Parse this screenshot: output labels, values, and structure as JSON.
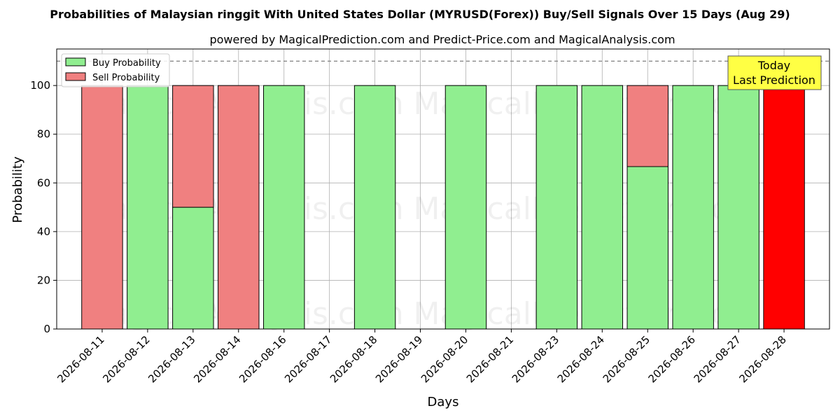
{
  "chart_data": {
    "type": "bar",
    "title": "Probabilities of Malaysian ringgit With United States Dollar (MYRUSD(Forex)) Buy/Sell Signals Over 15 Days (Aug 29)",
    "subtitle": "powered by MagicalPrediction.com and Predict-Price.com and MagicalAnalysis.com",
    "xlabel": "Days",
    "ylabel": "Probability",
    "ylim": [
      0,
      115
    ],
    "yticks": [
      0,
      20,
      40,
      60,
      80,
      100
    ],
    "reference_line": 110,
    "grid": true,
    "legend_position": "top-left",
    "categories": [
      "2026-08-11",
      "2026-08-12",
      "2026-08-13",
      "2026-08-14",
      "2026-08-16",
      "2026-08-17",
      "2026-08-18",
      "2026-08-19",
      "2026-08-20",
      "2026-08-21",
      "2026-08-23",
      "2026-08-24",
      "2026-08-25",
      "2026-08-26",
      "2026-08-27",
      "2026-08-28"
    ],
    "series": [
      {
        "name": "Buy Probability",
        "color": "#90ee90",
        "values": [
          0,
          100,
          50,
          0,
          100,
          null,
          100,
          null,
          100,
          null,
          100,
          100,
          66.7,
          100,
          100,
          null
        ]
      },
      {
        "name": "Sell Probability",
        "color": "#f08080",
        "values": [
          100,
          0,
          50,
          100,
          0,
          null,
          0,
          null,
          0,
          null,
          0,
          0,
          33.3,
          0,
          0,
          null
        ]
      }
    ],
    "today_bar": {
      "category": "2026-08-28",
      "value": 100,
      "color": "#ff0000"
    },
    "annotation": {
      "line1": "Today",
      "line2": "Last Prediction",
      "color": "#ffff44"
    },
    "watermarks": [
      "MagicalAnalysis.com",
      "MagicalPrediction.com"
    ]
  }
}
